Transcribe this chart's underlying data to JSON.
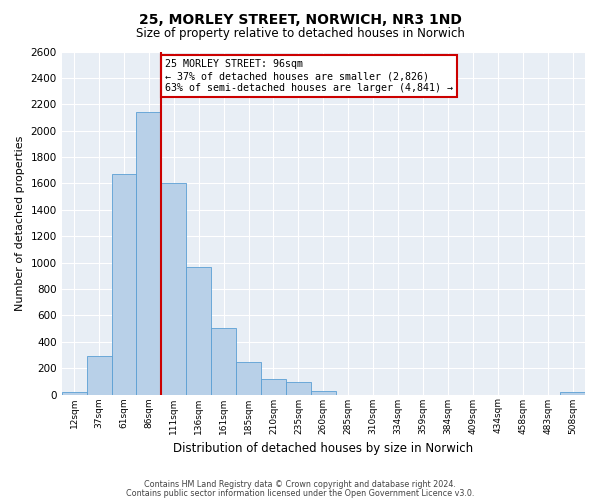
{
  "title": "25, MORLEY STREET, NORWICH, NR3 1ND",
  "subtitle": "Size of property relative to detached houses in Norwich",
  "xlabel": "Distribution of detached houses by size in Norwich",
  "ylabel": "Number of detached properties",
  "bin_labels": [
    "12sqm",
    "37sqm",
    "61sqm",
    "86sqm",
    "111sqm",
    "136sqm",
    "161sqm",
    "185sqm",
    "210sqm",
    "235sqm",
    "260sqm",
    "285sqm",
    "310sqm",
    "334sqm",
    "359sqm",
    "384sqm",
    "409sqm",
    "434sqm",
    "458sqm",
    "483sqm",
    "508sqm"
  ],
  "bar_heights": [
    20,
    295,
    1670,
    2140,
    1600,
    965,
    505,
    250,
    120,
    95,
    30,
    0,
    0,
    0,
    0,
    0,
    0,
    0,
    0,
    0,
    20
  ],
  "bar_color": "#b8d0e8",
  "bar_edge_color": "#5a9fd4",
  "vline_index": 3.5,
  "vline_color": "#cc0000",
  "annotation_title": "25 MORLEY STREET: 96sqm",
  "annotation_line1": "← 37% of detached houses are smaller (2,826)",
  "annotation_line2": "63% of semi-detached houses are larger (4,841) →",
  "annotation_box_color": "#cc0000",
  "ylim": [
    0,
    2600
  ],
  "yticks": [
    0,
    200,
    400,
    600,
    800,
    1000,
    1200,
    1400,
    1600,
    1800,
    2000,
    2200,
    2400,
    2600
  ],
  "footnote1": "Contains HM Land Registry data © Crown copyright and database right 2024.",
  "footnote2": "Contains public sector information licensed under the Open Government Licence v3.0.",
  "bg_color": "#e8eef5",
  "grid_color": "#ffffff"
}
